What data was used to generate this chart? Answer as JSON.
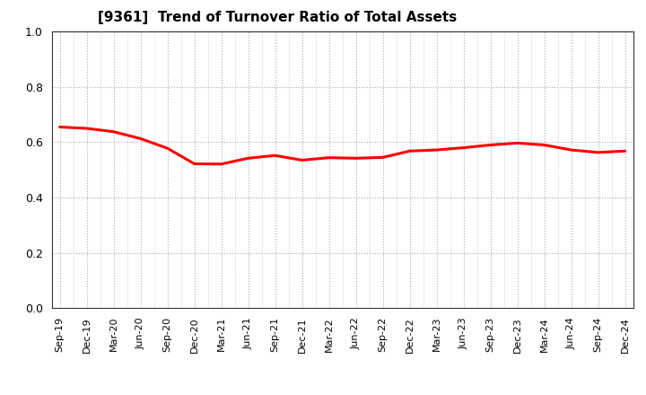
{
  "title": "[9361]  Trend of Turnover Ratio of Total Assets",
  "line_color": "#FF0000",
  "line_width": 2.2,
  "background_color": "#FFFFFF",
  "ylim": [
    0.0,
    1.0
  ],
  "yticks": [
    0.0,
    0.2,
    0.4,
    0.6,
    0.8,
    1.0
  ],
  "x_labels": [
    "Sep-19",
    "Dec-19",
    "Mar-20",
    "Jun-20",
    "Sep-20",
    "Dec-20",
    "Mar-21",
    "Jun-21",
    "Sep-21",
    "Dec-21",
    "Mar-22",
    "Jun-22",
    "Sep-22",
    "Dec-22",
    "Mar-23",
    "Jun-23",
    "Sep-23",
    "Dec-23",
    "Mar-24",
    "Jun-24",
    "Sep-24",
    "Dec-24"
  ],
  "values": [
    0.655,
    0.65,
    0.638,
    0.613,
    0.578,
    0.522,
    0.521,
    0.542,
    0.552,
    0.535,
    0.544,
    0.542,
    0.545,
    0.568,
    0.572,
    0.58,
    0.59,
    0.597,
    0.59,
    0.572,
    0.563,
    0.568
  ]
}
